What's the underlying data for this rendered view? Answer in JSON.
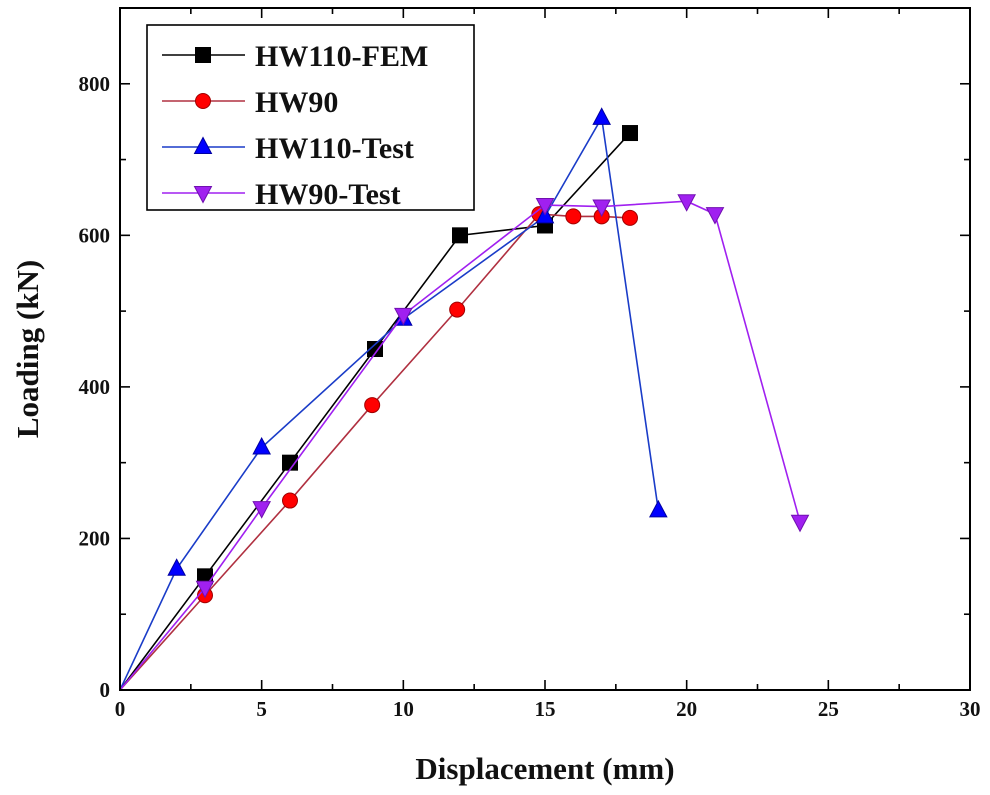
{
  "chart_data": {
    "type": "line",
    "title": "",
    "xlabel": "Displacement (mm)",
    "ylabel": "Loading (kN)",
    "xlim": [
      0,
      30
    ],
    "ylim": [
      0,
      900
    ],
    "xticks": [
      0,
      5,
      10,
      15,
      20,
      25,
      30
    ],
    "yticks": [
      0,
      200,
      400,
      600,
      800
    ],
    "grid": false,
    "legend_position": "top-left",
    "series": [
      {
        "name": "HW110-FEM",
        "color": "#000000",
        "marker": "square",
        "points": [
          [
            0,
            0
          ],
          [
            3,
            150
          ],
          [
            6,
            300
          ],
          [
            9,
            450
          ],
          [
            12,
            600
          ],
          [
            15,
            613
          ],
          [
            18,
            735
          ]
        ]
      },
      {
        "name": "HW90",
        "color": "#ff0000",
        "line_color": "#b03040",
        "marker": "circle",
        "points": [
          [
            0,
            0
          ],
          [
            3,
            125
          ],
          [
            6,
            250
          ],
          [
            8.9,
            376
          ],
          [
            11.9,
            502
          ],
          [
            14.8,
            628
          ],
          [
            16,
            625
          ],
          [
            17,
            625
          ],
          [
            18,
            623
          ]
        ]
      },
      {
        "name": "HW110-Test",
        "color": "#0000ff",
        "line_color": "#1a3cc8",
        "marker": "triangle-up",
        "points": [
          [
            0,
            0
          ],
          [
            2,
            160
          ],
          [
            5,
            320
          ],
          [
            10,
            490
          ],
          [
            15,
            625
          ],
          [
            17,
            755
          ],
          [
            19,
            237
          ]
        ]
      },
      {
        "name": "HW90-Test",
        "color": "#a020f0",
        "line_color": "#a020f0",
        "marker": "triangle-down",
        "points": [
          [
            0,
            0
          ],
          [
            3,
            135
          ],
          [
            5,
            240
          ],
          [
            10,
            495
          ],
          [
            15,
            640
          ],
          [
            17,
            638
          ],
          [
            20,
            645
          ],
          [
            21,
            628
          ],
          [
            24,
            222
          ]
        ]
      }
    ]
  }
}
